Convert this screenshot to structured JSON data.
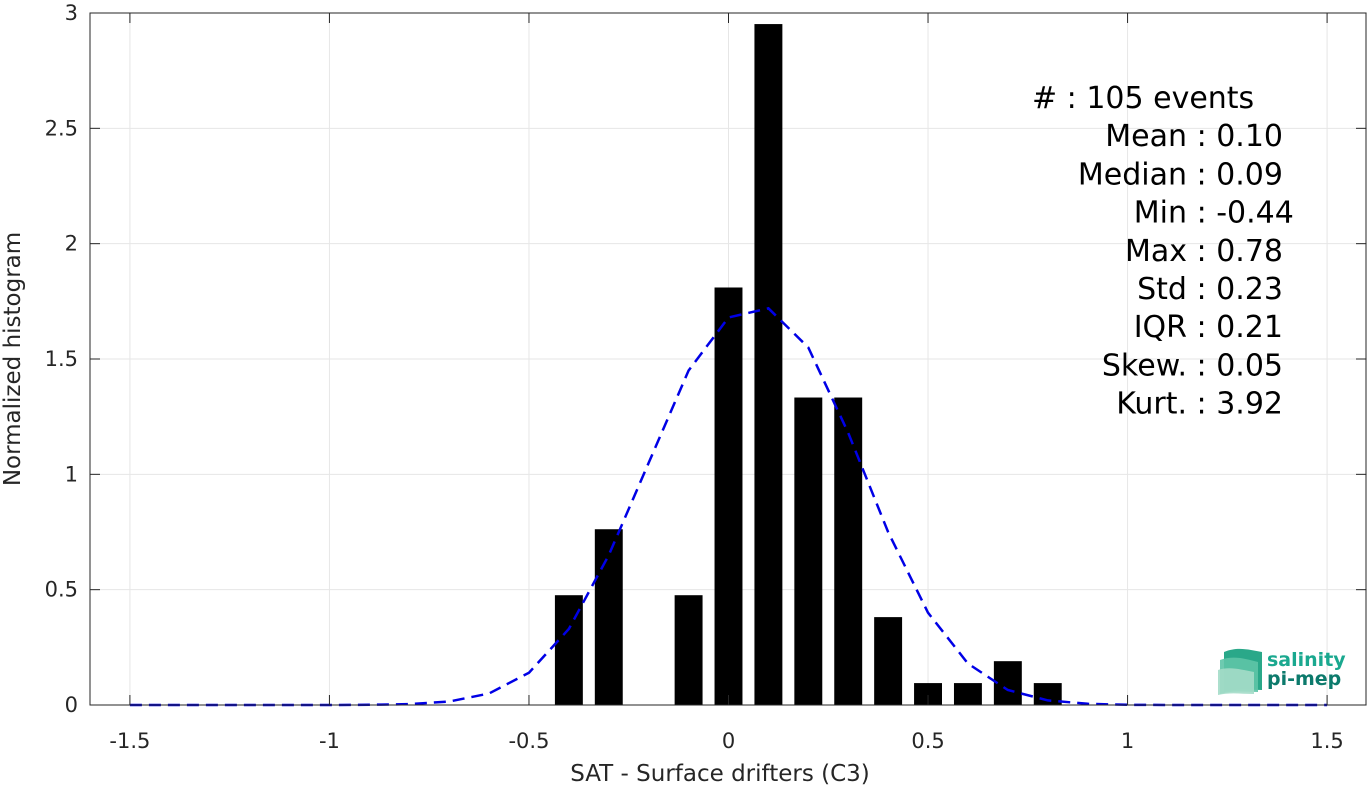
{
  "chart_data": {
    "type": "bar",
    "title": "",
    "xlabel": "SAT - Surface drifters (C3)",
    "ylabel": "Normalized histogram",
    "xlim": [
      -1.6,
      1.6
    ],
    "ylim": [
      0,
      3
    ],
    "xticks": [
      -1.5,
      -1,
      -0.5,
      0,
      0.5,
      1,
      1.5
    ],
    "xtick_labels": [
      "-1.5",
      "-1",
      "-0.5",
      "0",
      "0.5",
      "1",
      "1.5"
    ],
    "yticks": [
      0,
      0.5,
      1,
      1.5,
      2,
      2.5,
      3
    ],
    "ytick_labels": [
      "0",
      "0.5",
      "1",
      "1.5",
      "2",
      "2.5",
      "3"
    ],
    "grid": true,
    "bar_width": 0.07,
    "bar_color": "#000000",
    "bars": [
      {
        "x": -0.4,
        "value": 0.476
      },
      {
        "x": -0.3,
        "value": 0.762
      },
      {
        "x": -0.1,
        "value": 0.476
      },
      {
        "x": 0.0,
        "value": 1.81
      },
      {
        "x": 0.1,
        "value": 2.952
      },
      {
        "x": 0.2,
        "value": 1.333
      },
      {
        "x": 0.3,
        "value": 1.333
      },
      {
        "x": 0.4,
        "value": 0.381
      },
      {
        "x": 0.5,
        "value": 0.095
      },
      {
        "x": 0.6,
        "value": 0.095
      },
      {
        "x": 0.7,
        "value": 0.19
      },
      {
        "x": 0.8,
        "value": 0.095
      }
    ],
    "fit_curve": {
      "style": "dashed",
      "color": "#0000e6",
      "x": [
        -1.5,
        -1.4,
        -1.3,
        -1.2,
        -1.1,
        -1.0,
        -0.9,
        -0.8,
        -0.7,
        -0.6,
        -0.5,
        -0.4,
        -0.3,
        -0.2,
        -0.1,
        0.0,
        0.1,
        0.2,
        0.3,
        0.4,
        0.5,
        0.6,
        0.7,
        0.8,
        0.9,
        1.0,
        1.1,
        1.2,
        1.3,
        1.4,
        1.5
      ],
      "y": [
        0,
        0,
        0,
        0,
        0,
        0,
        0.001,
        0.004,
        0.015,
        0.05,
        0.14,
        0.33,
        0.65,
        1.05,
        1.45,
        1.68,
        1.72,
        1.55,
        1.18,
        0.75,
        0.4,
        0.18,
        0.065,
        0.02,
        0.005,
        0.001,
        0,
        0,
        0,
        0,
        0
      ]
    },
    "stats": [
      {
        "label": "#  : 105 events"
      },
      {
        "label": "Mean : 0.10"
      },
      {
        "label": "Median : 0.09"
      },
      {
        "label": "Min : -0.44"
      },
      {
        "label": "Max : 0.78"
      },
      {
        "label": "Std : 0.23"
      },
      {
        "label": "IQR : 0.21"
      },
      {
        "label": "Skew. : 0.05"
      },
      {
        "label": "Kurt. : 3.92"
      }
    ]
  },
  "logo": {
    "line1": "salinity",
    "line2": "pi-mep",
    "color1": "#1aa88f",
    "color2": "#0c7a6c"
  }
}
